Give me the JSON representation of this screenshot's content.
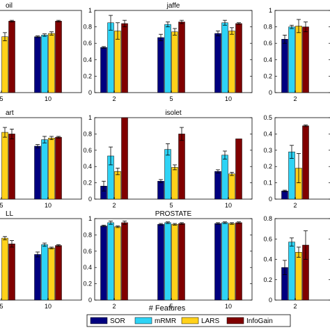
{
  "figure": {
    "xlabel": "# Features",
    "legend": [
      "SOR",
      "mRMR",
      "LARS",
      "InfoGain"
    ],
    "colors": {
      "SOR": "#00007f",
      "mRMR": "#2ed3f5",
      "LARS": "#ffd11a",
      "InfoGain": "#800000"
    }
  },
  "chart_data": [
    {
      "type": "bar",
      "title": "oil",
      "categories": [
        "5",
        "10"
      ],
      "ylim": [
        0,
        1
      ],
      "yticks": [],
      "series": [
        {
          "name": "SOR",
          "values": [
            null,
            0.68
          ],
          "err": [
            null,
            0.01
          ]
        },
        {
          "name": "mRMR",
          "values": [
            null,
            0.7
          ],
          "err": [
            null,
            0.015
          ]
        },
        {
          "name": "LARS",
          "values": [
            0.68,
            0.72
          ],
          "err": [
            0.05,
            0.02
          ]
        },
        {
          "name": "InfoGain",
          "values": [
            0.87,
            0.87
          ],
          "err": [
            0.01,
            0.01
          ]
        }
      ]
    },
    {
      "type": "bar",
      "title": "jaffe",
      "categories": [
        "2",
        "5",
        "10"
      ],
      "ylim": [
        0,
        1
      ],
      "yticks": [
        "0",
        "0.2",
        "0.4",
        "0.6",
        "0.8",
        "1"
      ],
      "series": [
        {
          "name": "SOR",
          "values": [
            0.55,
            0.67,
            0.72
          ],
          "err": [
            0.01,
            0.04,
            0.03
          ]
        },
        {
          "name": "mRMR",
          "values": [
            0.85,
            0.83,
            0.85
          ],
          "err": [
            0.09,
            0.03,
            0.03
          ]
        },
        {
          "name": "LARS",
          "values": [
            0.75,
            0.74,
            0.75
          ],
          "err": [
            0.1,
            0.04,
            0.04
          ]
        },
        {
          "name": "InfoGain",
          "values": [
            0.84,
            0.86,
            0.84
          ],
          "err": [
            0.04,
            0.02,
            0.01
          ]
        }
      ]
    },
    {
      "type": "bar",
      "title": "",
      "categories": [
        "2"
      ],
      "ylim": [
        0,
        1
      ],
      "yticks": [
        "0",
        "0.2",
        "0.4",
        "0.6",
        "0.8",
        "1"
      ],
      "series": [
        {
          "name": "SOR",
          "values": [
            0.65
          ],
          "err": [
            0.05
          ]
        },
        {
          "name": "mRMR",
          "values": [
            0.8
          ],
          "err": [
            0.02
          ]
        },
        {
          "name": "LARS",
          "values": [
            0.81
          ],
          "err": [
            0.08
          ]
        },
        {
          "name": "InfoGain",
          "values": [
            0.8
          ],
          "err": [
            0.06
          ]
        }
      ]
    },
    {
      "type": "bar",
      "title": "art",
      "categories": [
        "5",
        "10"
      ],
      "ylim": [
        0,
        1
      ],
      "yticks": [],
      "series": [
        {
          "name": "SOR",
          "values": [
            null,
            0.65
          ],
          "err": [
            null,
            0.02
          ]
        },
        {
          "name": "mRMR",
          "values": [
            null,
            0.73
          ],
          "err": [
            null,
            0.04
          ]
        },
        {
          "name": "LARS",
          "values": [
            0.82,
            0.75
          ],
          "err": [
            0.06,
            0.02
          ]
        },
        {
          "name": "InfoGain",
          "values": [
            0.8,
            0.76
          ],
          "err": [
            0.06,
            0.01
          ]
        }
      ]
    },
    {
      "type": "bar",
      "title": "isolet",
      "categories": [
        "2",
        "5",
        "10"
      ],
      "ylim": [
        0,
        1
      ],
      "yticks": [
        "0",
        "0.2",
        "0.4",
        "0.6",
        "0.8",
        "1"
      ],
      "series": [
        {
          "name": "SOR",
          "values": [
            0.16,
            0.22,
            0.34
          ],
          "err": [
            0.06,
            0.02,
            0.02
          ]
        },
        {
          "name": "mRMR",
          "values": [
            0.53,
            0.61,
            0.54
          ],
          "err": [
            0.11,
            0.07,
            0.05
          ]
        },
        {
          "name": "LARS",
          "values": [
            0.34,
            0.39,
            0.31
          ],
          "err": [
            0.04,
            0.03,
            0.02
          ]
        },
        {
          "name": "InfoGain",
          "values": [
            1.0,
            0.8,
            0.74
          ],
          "err": [
            0.0,
            0.08,
            0.0
          ]
        }
      ]
    },
    {
      "type": "bar",
      "title": "",
      "categories": [
        "2"
      ],
      "ylim": [
        0,
        0.5
      ],
      "yticks": [
        "0",
        "0.1",
        "0.2",
        "0.3",
        "0.4",
        "0.5"
      ],
      "series": [
        {
          "name": "SOR",
          "values": [
            0.05
          ],
          "err": [
            0.005
          ]
        },
        {
          "name": "mRMR",
          "values": [
            0.29
          ],
          "err": [
            0.04
          ]
        },
        {
          "name": "LARS",
          "values": [
            0.19
          ],
          "err": [
            0.09
          ]
        },
        {
          "name": "InfoGain",
          "values": [
            0.45
          ],
          "err": [
            0.005
          ]
        }
      ]
    },
    {
      "type": "bar",
      "title": "LL",
      "categories": [
        "5",
        "10"
      ],
      "ylim": [
        0,
        1
      ],
      "yticks": [],
      "series": [
        {
          "name": "SOR",
          "values": [
            null,
            0.56
          ],
          "err": [
            null,
            0.03
          ]
        },
        {
          "name": "mRMR",
          "values": [
            null,
            0.68
          ],
          "err": [
            null,
            0.02
          ]
        },
        {
          "name": "LARS",
          "values": [
            0.76,
            0.64
          ],
          "err": [
            0.02,
            0.01
          ]
        },
        {
          "name": "InfoGain",
          "values": [
            0.69,
            0.67
          ],
          "err": [
            0.04,
            0.01
          ]
        }
      ]
    },
    {
      "type": "bar",
      "title": "PROSTATE",
      "categories": [
        "2",
        "5",
        "10"
      ],
      "ylim": [
        0,
        1
      ],
      "yticks": [
        "0",
        "0.2",
        "0.4",
        "0.6",
        "0.8",
        "1"
      ],
      "series": [
        {
          "name": "SOR",
          "values": [
            0.91,
            0.93,
            0.94
          ],
          "err": [
            0.01,
            0.01,
            0.01
          ]
        },
        {
          "name": "mRMR",
          "values": [
            0.95,
            0.95,
            0.95
          ],
          "err": [
            0.02,
            0.01,
            0.01
          ]
        },
        {
          "name": "LARS",
          "values": [
            0.9,
            0.93,
            0.94
          ],
          "err": [
            0.01,
            0.01,
            0.01
          ]
        },
        {
          "name": "InfoGain",
          "values": [
            0.95,
            0.94,
            0.95
          ],
          "err": [
            0.02,
            0.01,
            0.01
          ]
        }
      ]
    },
    {
      "type": "bar",
      "title": "",
      "categories": [
        "2"
      ],
      "ylim": [
        0,
        0.8
      ],
      "yticks": [
        "0",
        "0.2",
        "0.4",
        "0.6",
        "0.8"
      ],
      "series": [
        {
          "name": "SOR",
          "values": [
            0.32
          ],
          "err": [
            0.07
          ]
        },
        {
          "name": "mRMR",
          "values": [
            0.57
          ],
          "err": [
            0.04
          ]
        },
        {
          "name": "LARS",
          "values": [
            0.47
          ],
          "err": [
            0.05
          ]
        },
        {
          "name": "InfoGain",
          "values": [
            0.54
          ],
          "err": [
            0.14
          ]
        }
      ]
    }
  ]
}
